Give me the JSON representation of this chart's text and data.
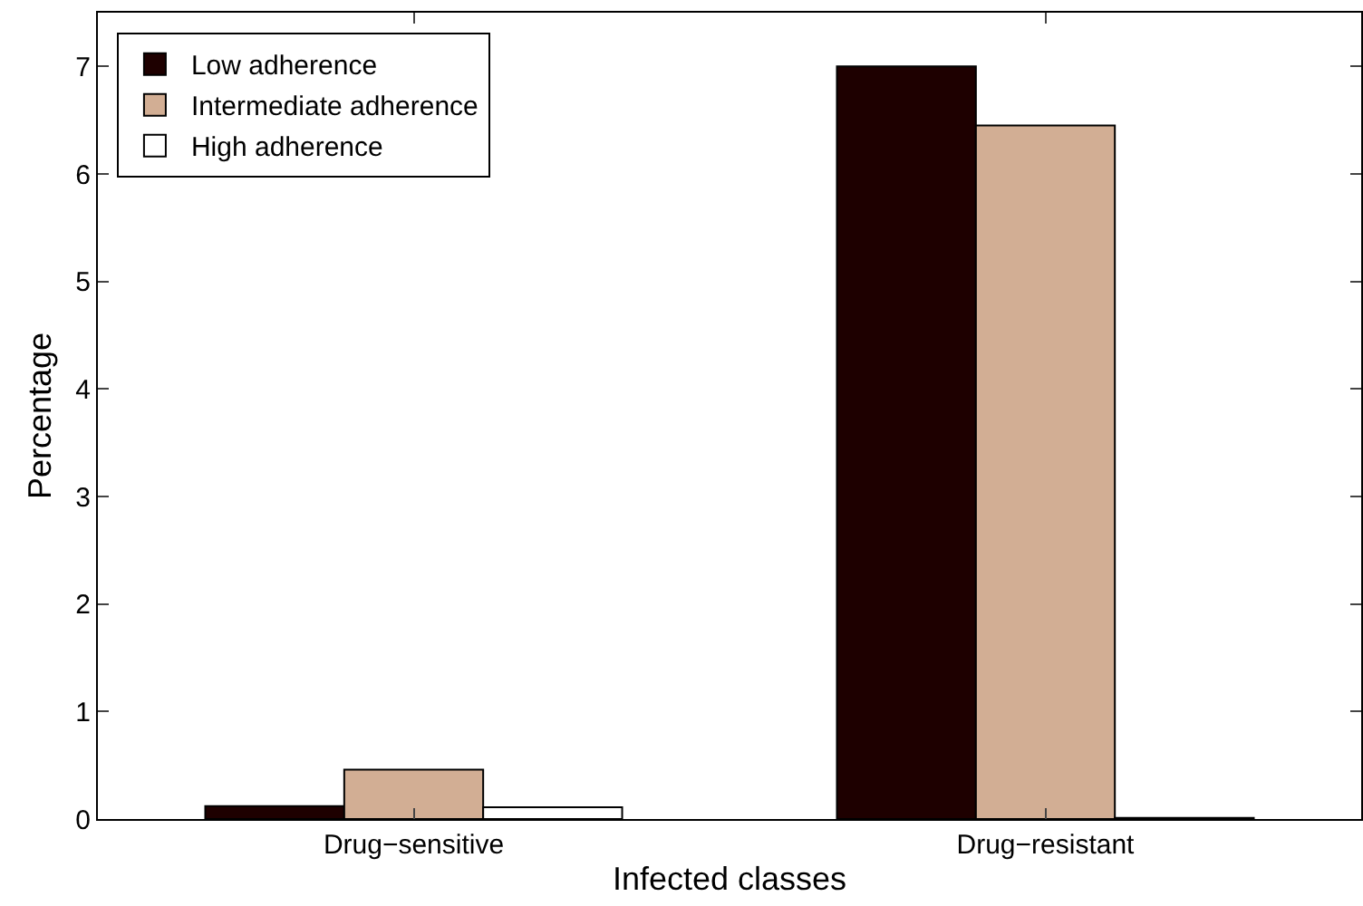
{
  "chart_data": {
    "type": "bar",
    "xlabel": "Infected classes",
    "ylabel": "Percentage",
    "categories": [
      "Drug−sensitive",
      "Drug−resistant"
    ],
    "series": [
      {
        "name": "Low adherence",
        "color": "#1e0000",
        "values": [
          0.12,
          7.0
        ]
      },
      {
        "name": "Intermediate adherence",
        "color": "#d2ae94",
        "values": [
          0.46,
          6.45
        ]
      },
      {
        "name": "High adherence",
        "color": "#ffffff",
        "values": [
          0.11,
          0.01
        ]
      }
    ],
    "ylim": [
      0,
      7.5
    ],
    "yticks": [
      0,
      1,
      2,
      3,
      4,
      5,
      6,
      7
    ],
    "grid": false,
    "legend": "top left"
  }
}
